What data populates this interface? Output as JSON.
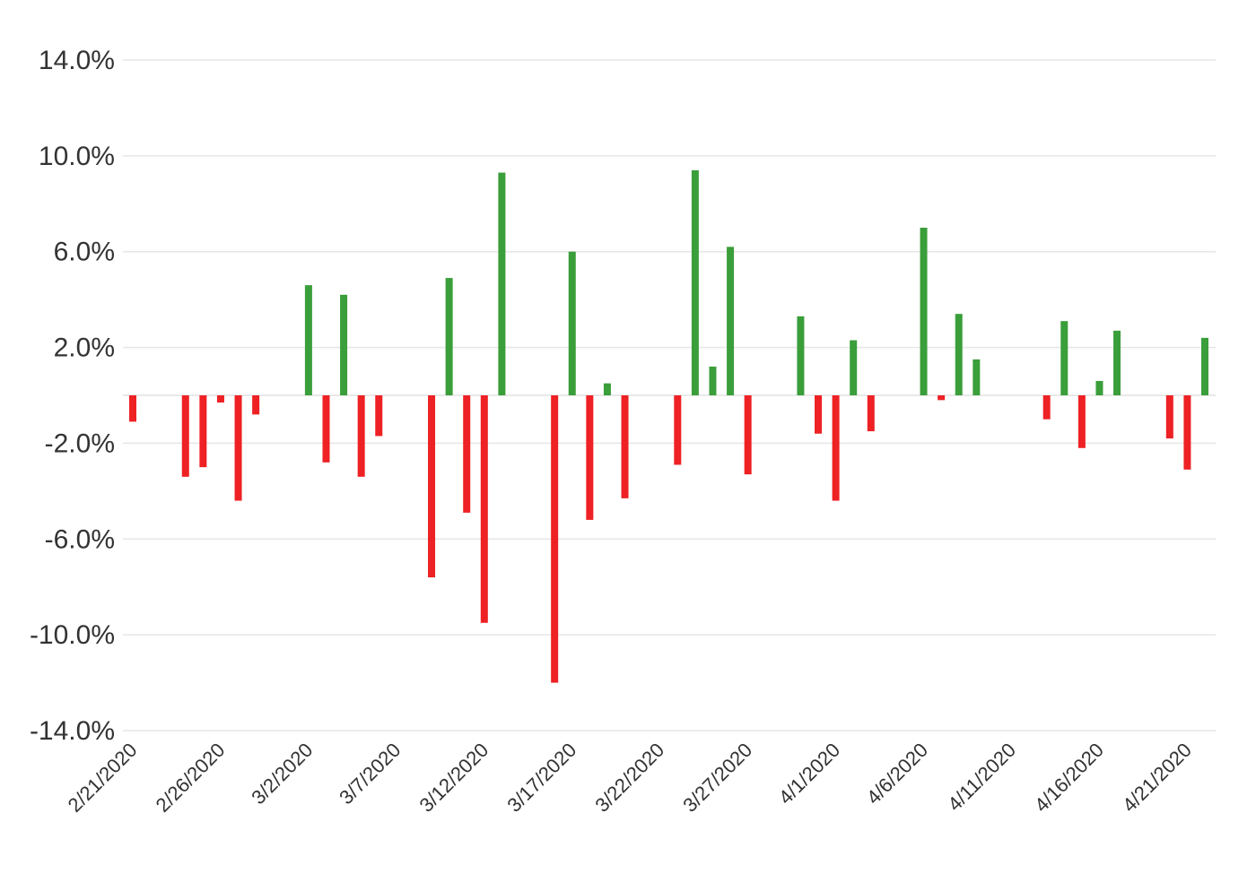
{
  "chart_data": {
    "type": "bar",
    "title": "",
    "xlabel": "",
    "ylabel": "",
    "ylim": [
      -14,
      14
    ],
    "y_ticks": [
      14,
      10,
      6,
      2,
      -2,
      -6,
      -10,
      -14
    ],
    "y_tick_labels": [
      "14.0%",
      "10.0%",
      "6.0%",
      "2.0%",
      "-2.0%",
      "-6.0%",
      "-10.0%",
      "-14.0%"
    ],
    "x_tick_labels": [
      "2/21/2020",
      "2/26/2020",
      "3/2/2020",
      "3/7/2020",
      "3/12/2020",
      "3/17/2020",
      "3/22/2020",
      "3/27/2020",
      "4/1/2020",
      "4/6/2020",
      "4/11/2020",
      "4/16/2020",
      "4/21/2020"
    ],
    "grid": true,
    "legend": "none",
    "colors": {
      "positive": "#3a9e3a",
      "negative": "#ee2124"
    },
    "dates": [
      "2/21/2020",
      "2/22/2020",
      "2/23/2020",
      "2/24/2020",
      "2/25/2020",
      "2/26/2020",
      "2/27/2020",
      "2/28/2020",
      "2/29/2020",
      "3/1/2020",
      "3/2/2020",
      "3/3/2020",
      "3/4/2020",
      "3/5/2020",
      "3/6/2020",
      "3/7/2020",
      "3/8/2020",
      "3/9/2020",
      "3/10/2020",
      "3/11/2020",
      "3/12/2020",
      "3/13/2020",
      "3/14/2020",
      "3/15/2020",
      "3/16/2020",
      "3/17/2020",
      "3/18/2020",
      "3/19/2020",
      "3/20/2020",
      "3/21/2020",
      "3/22/2020",
      "3/23/2020",
      "3/24/2020",
      "3/25/2020",
      "3/26/2020",
      "3/27/2020",
      "3/28/2020",
      "3/29/2020",
      "3/30/2020",
      "3/31/2020",
      "4/1/2020",
      "4/2/2020",
      "4/3/2020",
      "4/4/2020",
      "4/5/2020",
      "4/6/2020",
      "4/7/2020",
      "4/8/2020",
      "4/9/2020",
      "4/10/2020",
      "4/11/2020",
      "4/12/2020",
      "4/13/2020",
      "4/14/2020",
      "4/15/2020",
      "4/16/2020",
      "4/17/2020",
      "4/18/2020",
      "4/19/2020",
      "4/20/2020",
      "4/21/2020",
      "4/22/2020"
    ],
    "values": [
      -1.1,
      null,
      null,
      -3.4,
      -3.0,
      -0.3,
      -4.4,
      -0.8,
      null,
      null,
      4.6,
      -2.8,
      4.2,
      -3.4,
      -1.7,
      null,
      null,
      -7.6,
      4.9,
      -4.9,
      -9.5,
      9.3,
      null,
      null,
      -12.0,
      6.0,
      -5.2,
      0.5,
      -4.3,
      null,
      null,
      -2.9,
      9.4,
      1.2,
      6.2,
      -3.3,
      null,
      null,
      3.3,
      -1.6,
      -4.4,
      2.3,
      -1.5,
      null,
      null,
      7.0,
      -0.2,
      3.4,
      1.5,
      null,
      null,
      null,
      -1.0,
      3.1,
      -2.2,
      0.6,
      2.7,
      null,
      null,
      -1.8,
      -3.1,
      2.4
    ]
  }
}
